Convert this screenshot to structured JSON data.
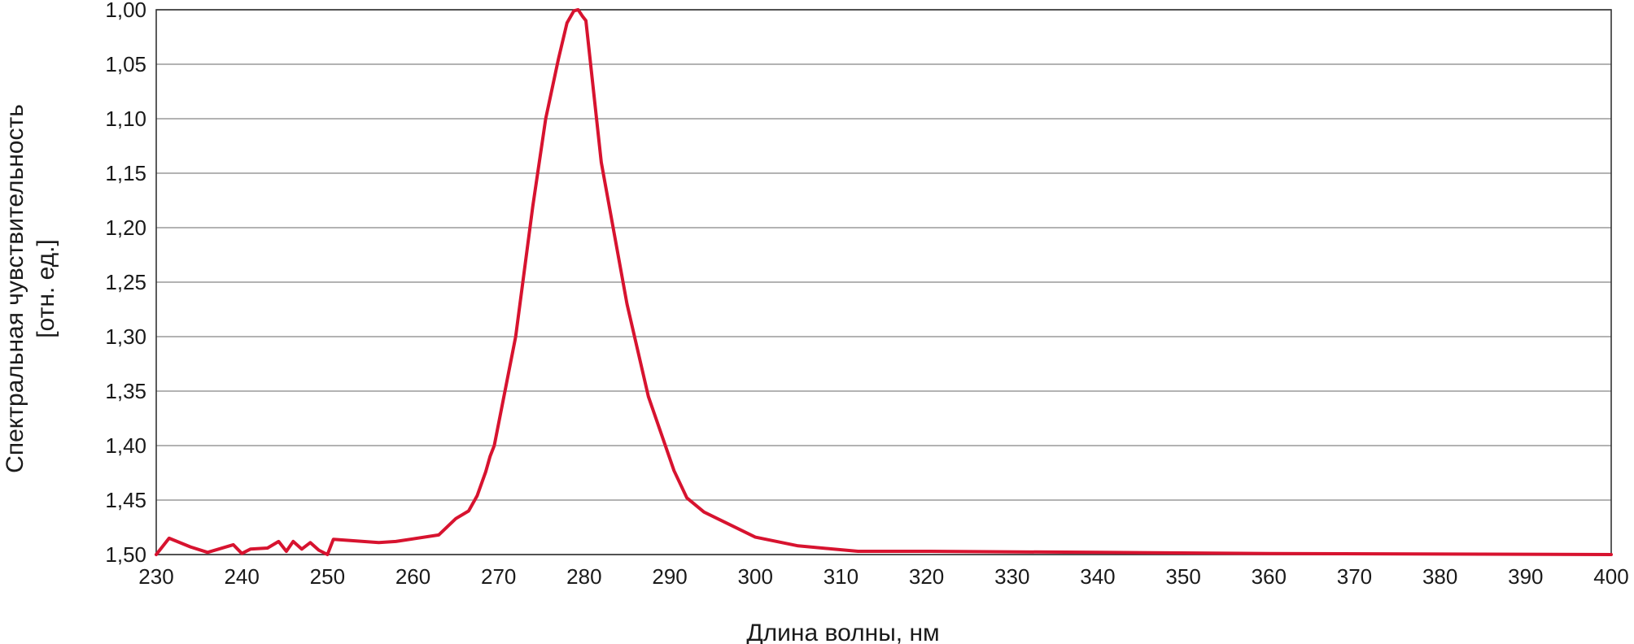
{
  "chart_data": {
    "type": "line",
    "xlabel": "Длина волны, нм",
    "ylabel": [
      "Спектральная чувствительность",
      "[отн. ед.]"
    ],
    "xlim": [
      230,
      400
    ],
    "ylim": [
      1.5,
      1.0
    ],
    "y_inverted": true,
    "grid": true,
    "x_ticks": [
      230,
      240,
      250,
      260,
      270,
      280,
      290,
      300,
      310,
      320,
      330,
      340,
      350,
      360,
      370,
      380,
      390,
      400
    ],
    "x_tick_labels": [
      "230",
      "240",
      "250",
      "260",
      "270",
      "280",
      "290",
      "300",
      "310",
      "320",
      "330",
      "340",
      "350",
      "360",
      "370",
      "380",
      "390",
      "400"
    ],
    "y_ticks": [
      1.0,
      1.05,
      1.1,
      1.15,
      1.2,
      1.25,
      1.3,
      1.35,
      1.4,
      1.45,
      1.5
    ],
    "y_tick_labels": [
      "1,00",
      "1,05",
      "1,10",
      "1,15",
      "1,20",
      "1,25",
      "1,30",
      "1,35",
      "1,40",
      "1,45",
      "1,50"
    ],
    "series": [
      {
        "color": "#d7132f",
        "x": [
          230,
          231.5,
          234,
          236,
          239,
          240,
          241,
          243,
          244.3,
          245.2,
          246,
          247,
          248,
          249,
          250,
          250.7,
          256,
          258,
          263,
          265,
          266.5,
          267.5,
          268.5,
          269,
          269.5,
          272,
          274,
          275.5,
          277,
          278,
          278.8,
          279.3,
          279.8,
          280.2,
          282,
          285,
          287.5,
          290.5,
          292,
          294,
          300,
          305,
          312,
          320,
          340,
          360,
          400
        ],
        "y": [
          1.5,
          1.485,
          1.493,
          1.498,
          1.491,
          1.499,
          1.495,
          1.494,
          1.488,
          1.497,
          1.488,
          1.495,
          1.489,
          1.496,
          1.5,
          1.486,
          1.489,
          1.488,
          1.482,
          1.467,
          1.46,
          1.446,
          1.424,
          1.41,
          1.4,
          1.3,
          1.18,
          1.1,
          1.045,
          1.012,
          1.001,
          1.0,
          1.006,
          1.01,
          1.14,
          1.27,
          1.355,
          1.423,
          1.448,
          1.461,
          1.484,
          1.492,
          1.497,
          1.497,
          1.498,
          1.499,
          1.5
        ]
      }
    ]
  }
}
